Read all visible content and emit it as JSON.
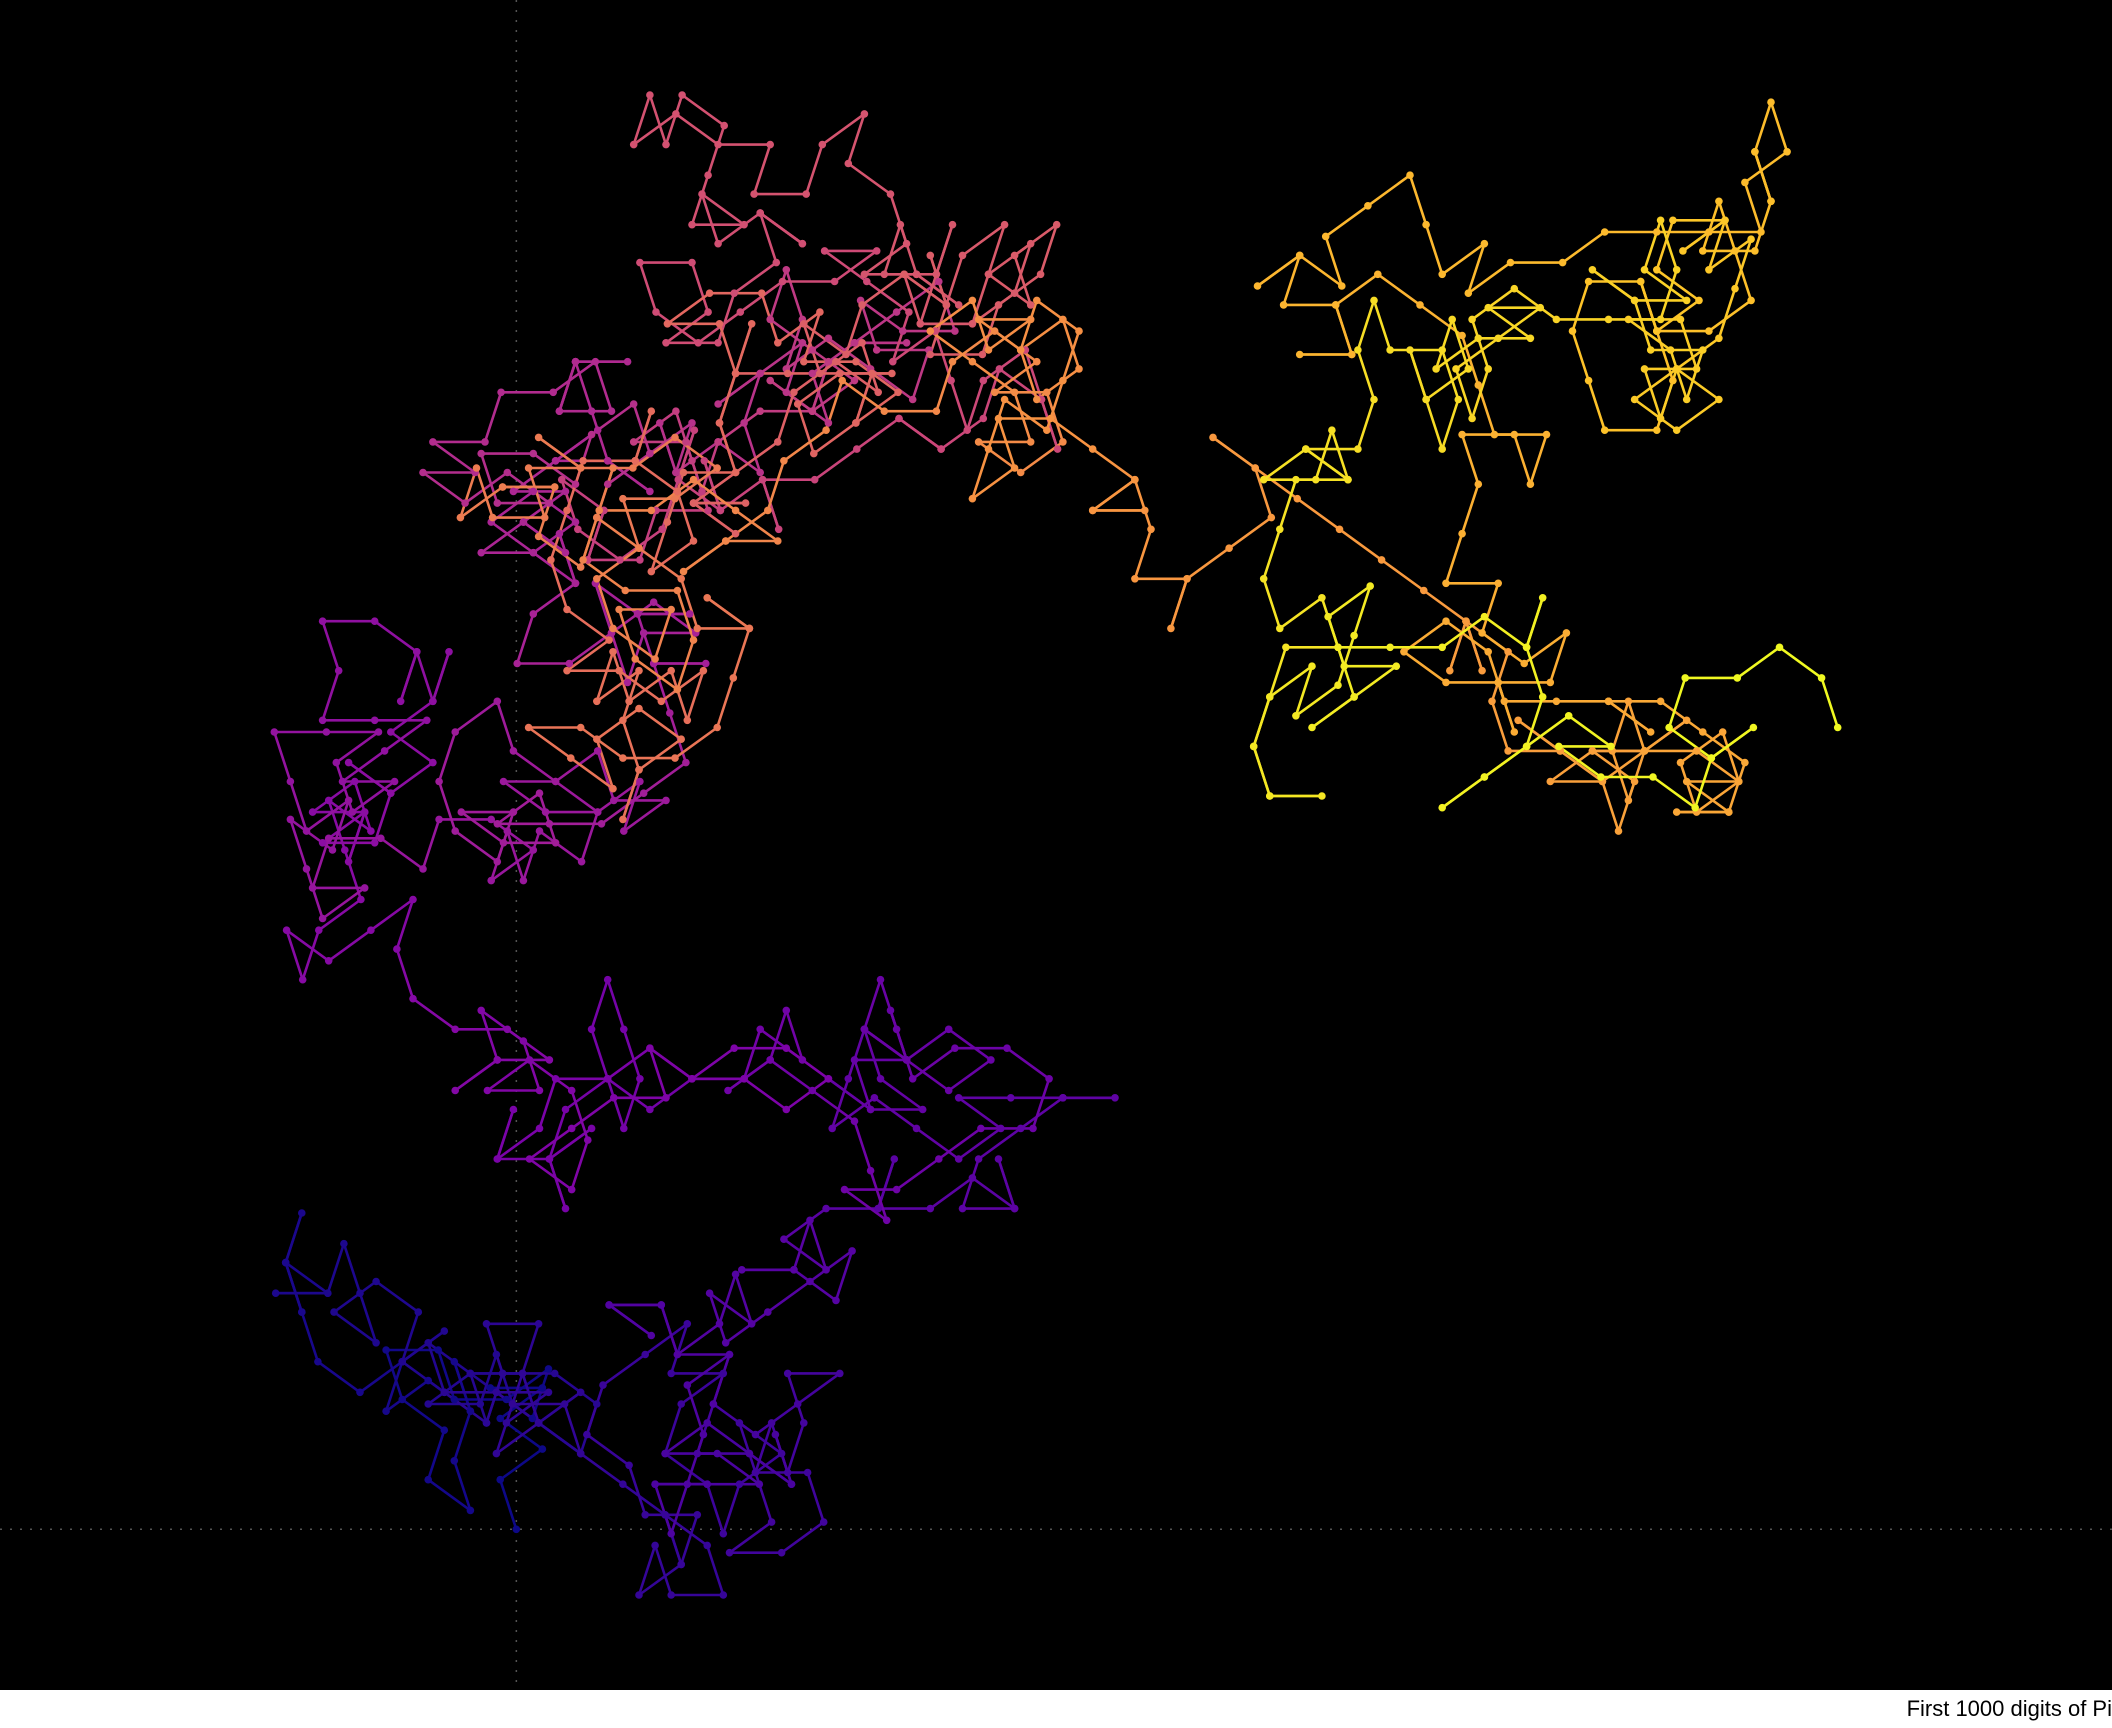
{
  "caption": "First 1000 digits of Pi",
  "chart_data": {
    "type": "line",
    "description_of_encoding": "",
    "digits": "31415926535897932384626433832795028841971693993751058209749445923078164062862089986280348253421170679821480865132823066470938446095505822317253594081284811174502841027019385211055596446229489549303819644288109756659334461284756482337867831652712019091456485669234603486104543266482133936072602491412737245870066063155881748815209209628292540917153643678925903600113305305488204665213841469519415116094330572703657595919530921861173819326117931051185480744623799627495673518857527248912279381830119491298336733624406566430860213949463952247371907021798609437027705392171762931767523846748184676694051320005681271452635608277857713427577896091736371787214684409012249534301465495853710507922796892589235420199561121290219608640344181598136297747713099605187072113499999983729780499510597317328160963185950244594553469083026425223082533446850352619311881710100031378387528865875332083814206171776691473035982534904287554687311595628638823537875937519577818577805321712268066130019278766111959092164201989",
    "origin": [
      0,
      0
    ],
    "step": 1,
    "directions": 10,
    "grid": "dotted axes through origin",
    "colormap": "plasma",
    "point_count": 1000
  },
  "colors": {
    "background": "#000000",
    "grid": "#555555"
  }
}
